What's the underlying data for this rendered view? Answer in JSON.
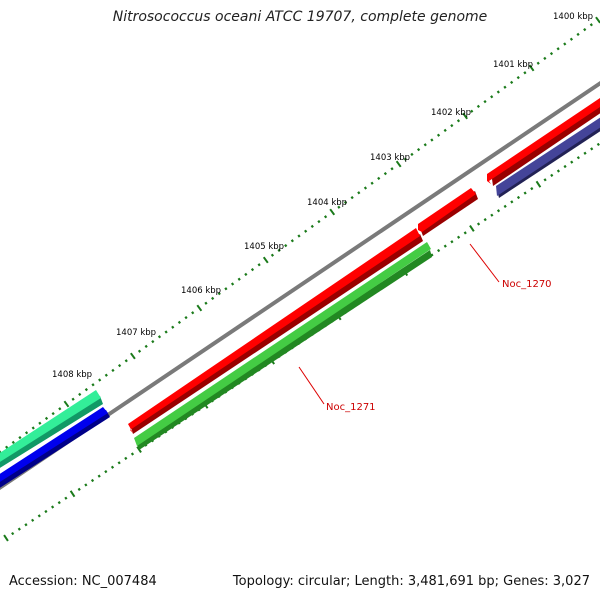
{
  "title": "Nitrosococcus oceani ATCC 19707, complete genome",
  "footer": {
    "accession": "Accession: NC_007484",
    "summary": "Topology: circular; Length: 3,481,691 bp; Genes: 3,027"
  },
  "colors": {
    "backbone": "#7a7a7a",
    "tick": "#1a7a1a",
    "cds_red": "#ff0000",
    "cds_green": "#44cc44",
    "cds_teal": "#33ee99",
    "cds_blue": "#0000ee",
    "cds_purple": "#444499",
    "label_line": "#dd0000",
    "label_text": "#cc0000"
  },
  "ruler": {
    "labels": [
      "1400 kbp",
      "1401 kbp",
      "1402 kbp",
      "1403 kbp",
      "1404 kbp",
      "1405 kbp",
      "1406 kbp",
      "1407 kbp",
      "1408 kbp"
    ]
  },
  "genes": [
    {
      "name": "Noc_1270"
    },
    {
      "name": "Noc_1271"
    }
  ]
}
